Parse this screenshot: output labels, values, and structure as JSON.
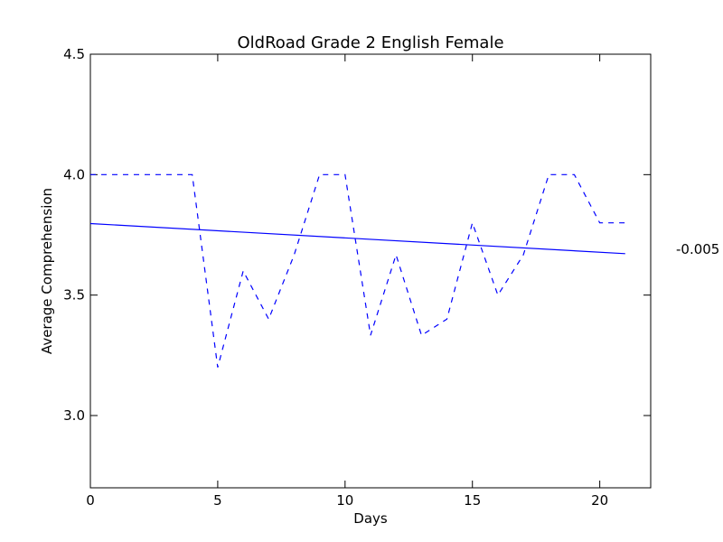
{
  "chart_data": {
    "type": "line",
    "title": "OldRoad Grade 2 English Female",
    "xlabel": "Days",
    "ylabel": "Average Comprehension",
    "xlim": [
      0,
      22
    ],
    "ylim": [
      2.7,
      4.5
    ],
    "xticks": [
      0,
      5,
      10,
      15,
      20
    ],
    "yticks": [
      3.0,
      3.5,
      4.0,
      4.5
    ],
    "grid": false,
    "series": [
      {
        "style": "dashed",
        "color": "#0000ff",
        "x": [
          0,
          1,
          2,
          3,
          4,
          5,
          6,
          7,
          8,
          9,
          10,
          11,
          12,
          13,
          14,
          15,
          16,
          17,
          18,
          19,
          20,
          21
        ],
        "y": [
          4.0,
          4.0,
          4.0,
          4.0,
          4.0,
          3.2,
          3.6,
          3.4,
          3.667,
          4.0,
          4.0,
          3.333,
          3.667,
          3.333,
          3.4,
          3.8,
          3.5,
          3.667,
          4.0,
          4.0,
          3.8,
          3.8
        ]
      },
      {
        "style": "solid",
        "color": "#0000ff",
        "x": [
          0,
          21
        ],
        "y": [
          3.797,
          3.672
        ]
      }
    ],
    "annotation": "-0.005"
  }
}
